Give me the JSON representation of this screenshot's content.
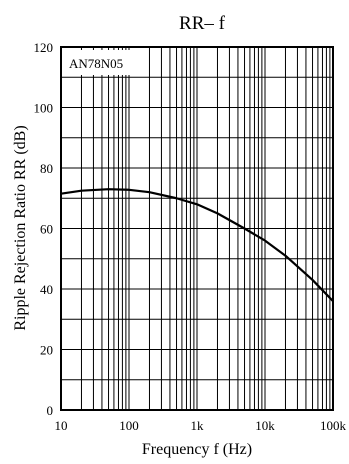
{
  "chart_data": {
    "type": "line",
    "title": "RR– f",
    "annotation": "AN78N05",
    "xlabel": "Frequency  f (Hz)",
    "ylabel": "Ripple Rejection Ratio  RR (dB)",
    "xscale": "log",
    "xlim": [
      10,
      100000
    ],
    "ylim": [
      0,
      120
    ],
    "x_ticks": [
      10,
      100,
      1000,
      10000,
      100000
    ],
    "x_tick_labels": [
      "10",
      "100",
      "1k",
      "10k",
      "100k"
    ],
    "y_ticks": [
      0,
      20,
      40,
      60,
      80,
      100,
      120
    ],
    "y_tick_labels": [
      "0",
      "20",
      "40",
      "60",
      "80",
      "100",
      "120"
    ],
    "grid": true,
    "series": [
      {
        "x": [
          10,
          20,
          50,
          100,
          200,
          500,
          1000,
          2000,
          5000,
          10000,
          20000,
          50000,
          100000
        ],
        "y": [
          71.5,
          72.5,
          73,
          72.8,
          72,
          70,
          68,
          65,
          60,
          56,
          51,
          43,
          36
        ]
      }
    ]
  }
}
